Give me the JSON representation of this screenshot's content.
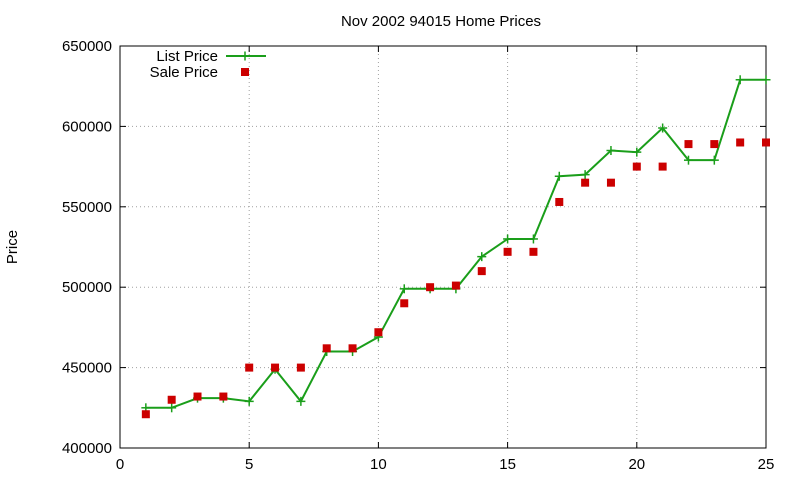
{
  "chart_data": {
    "type": "line",
    "title": "Nov 2002 94015 Home Prices",
    "xlabel": "",
    "ylabel": "Price",
    "xlim": [
      0,
      25
    ],
    "ylim": [
      400000,
      650000
    ],
    "xticks": [
      0,
      5,
      10,
      15,
      20,
      25
    ],
    "yticks": [
      400000,
      450000,
      500000,
      550000,
      600000,
      650000
    ],
    "xtick_labels": [
      "0",
      "5",
      "10",
      "15",
      "20",
      "25"
    ],
    "ytick_labels": [
      "400000",
      "450000",
      "500000",
      "550000",
      "600000",
      "650000"
    ],
    "grid": true,
    "legend_position": "top-left",
    "series": [
      {
        "name": "List Price",
        "style": "line-with-plus-markers",
        "color": "#1a9e1a",
        "x": [
          1,
          2,
          3,
          4,
          5,
          6,
          7,
          8,
          9,
          10,
          11,
          12,
          13,
          14,
          15,
          16,
          17,
          18,
          19,
          20,
          21,
          22,
          23,
          24,
          25
        ],
        "values": [
          425000,
          425000,
          431000,
          431000,
          429000,
          449000,
          429000,
          460000,
          460000,
          469000,
          499000,
          499000,
          499000,
          519000,
          530000,
          530000,
          569000,
          570000,
          585000,
          584000,
          599000,
          579000,
          579000,
          629000,
          629000
        ]
      },
      {
        "name": "Sale Price",
        "style": "square-markers",
        "color": "#cc0000",
        "x": [
          1,
          2,
          3,
          4,
          5,
          6,
          7,
          8,
          9,
          10,
          11,
          12,
          13,
          14,
          15,
          16,
          17,
          18,
          19,
          20,
          21,
          22,
          23,
          24,
          25
        ],
        "values": [
          421000,
          430000,
          432000,
          432000,
          450000,
          450000,
          450000,
          462000,
          462000,
          472000,
          490000,
          500000,
          501000,
          510000,
          522000,
          522000,
          553000,
          565000,
          565000,
          575000,
          575000,
          589000,
          589000,
          590000,
          590000
        ]
      }
    ]
  }
}
